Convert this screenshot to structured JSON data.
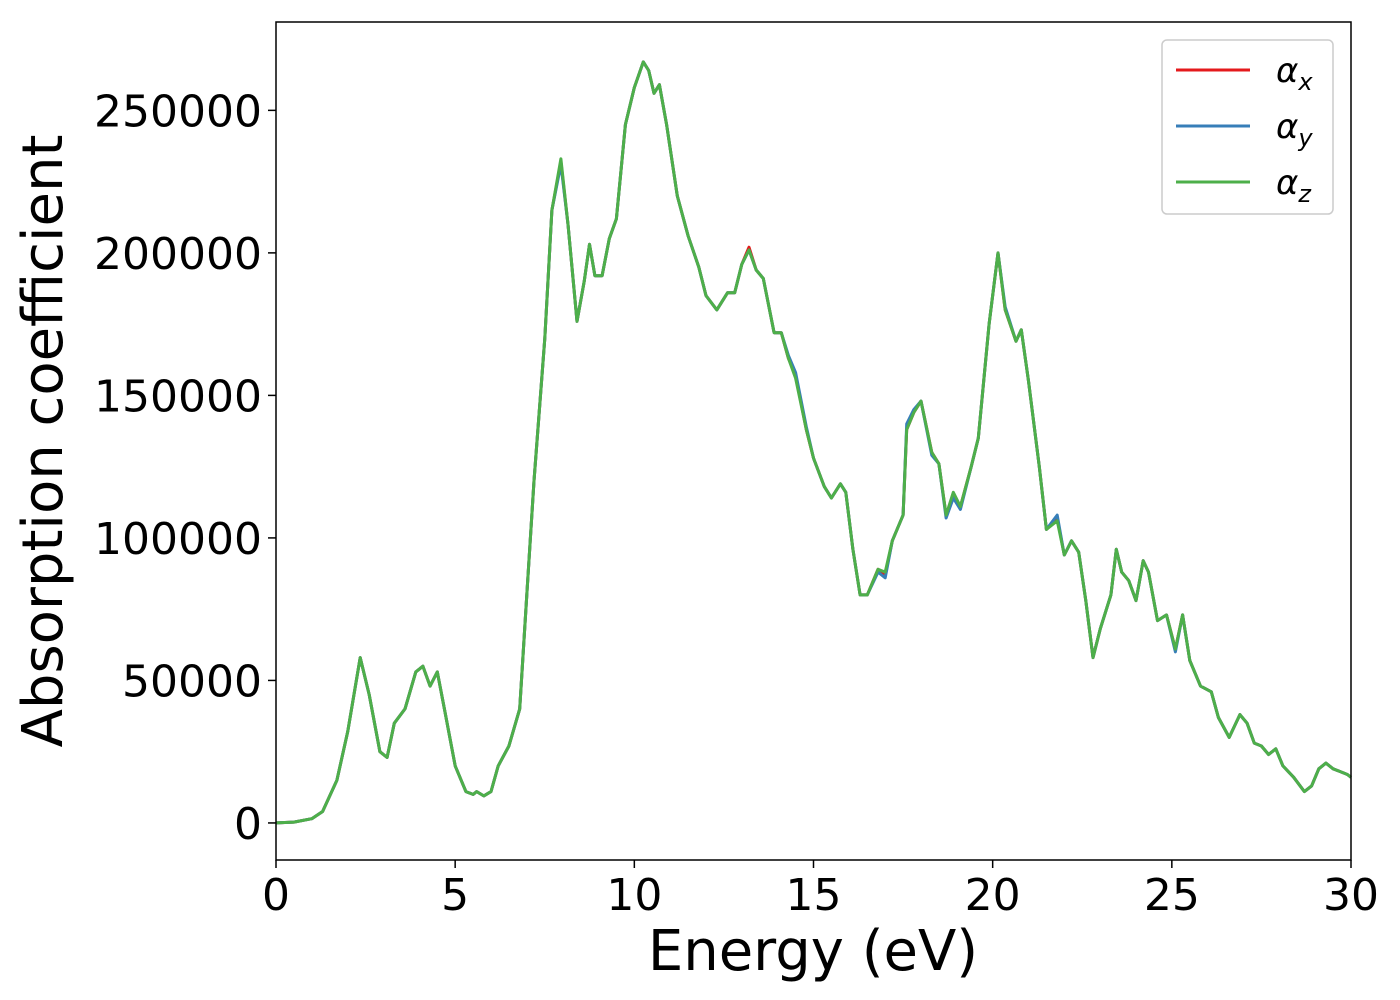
{
  "chart_data": {
    "type": "line",
    "xlabel": "Energy (eV)",
    "ylabel": "Absorption coefficient",
    "x": [
      0,
      0.5,
      1.0,
      1.3,
      1.7,
      2.0,
      2.35,
      2.6,
      2.9,
      3.1,
      3.3,
      3.6,
      3.9,
      4.1,
      4.3,
      4.5,
      4.7,
      5.0,
      5.3,
      5.5,
      5.6,
      5.8,
      6.0,
      6.2,
      6.5,
      6.8,
      7.0,
      7.2,
      7.5,
      7.7,
      7.95,
      8.15,
      8.4,
      8.6,
      8.75,
      8.9,
      9.1,
      9.3,
      9.5,
      9.75,
      10.0,
      10.25,
      10.4,
      10.55,
      10.7,
      10.9,
      11.2,
      11.5,
      11.8,
      12.0,
      12.3,
      12.6,
      12.8,
      13.0,
      13.2,
      13.4,
      13.6,
      13.9,
      14.1,
      14.3,
      14.5,
      14.8,
      15.0,
      15.3,
      15.5,
      15.75,
      15.9,
      16.1,
      16.3,
      16.5,
      16.8,
      17.0,
      17.2,
      17.5,
      17.6,
      17.8,
      18.0,
      18.3,
      18.5,
      18.7,
      18.9,
      19.1,
      19.4,
      19.6,
      19.9,
      20.15,
      20.35,
      20.65,
      20.8,
      21.0,
      21.3,
      21.5,
      21.8,
      22.0,
      22.2,
      22.4,
      22.6,
      22.8,
      23.0,
      23.3,
      23.45,
      23.6,
      23.8,
      24.0,
      24.2,
      24.35,
      24.6,
      24.85,
      25.1,
      25.3,
      25.5,
      25.8,
      26.1,
      26.3,
      26.6,
      26.9,
      27.1,
      27.3,
      27.5,
      27.7,
      27.9,
      28.1,
      28.4,
      28.7,
      28.9,
      29.1,
      29.3,
      29.5,
      29.7,
      29.9,
      30
    ],
    "series": [
      {
        "name": "αx",
        "color": "#e41a1c",
        "values": [
          0,
          300,
          1500,
          4000,
          15000,
          32000,
          58000,
          45000,
          25000,
          23000,
          35000,
          40000,
          53000,
          55000,
          48000,
          53000,
          40000,
          20000,
          11000,
          10000,
          11000,
          9500,
          11000,
          20000,
          27000,
          40000,
          80000,
          120000,
          170000,
          215000,
          232000,
          210000,
          176000,
          190000,
          203000,
          192000,
          192000,
          205000,
          212000,
          245000,
          258000,
          267000,
          264000,
          256000,
          259000,
          245000,
          220000,
          206000,
          195000,
          185000,
          180000,
          186000,
          186000,
          196000,
          202000,
          194000,
          191000,
          172000,
          172000,
          163000,
          157000,
          138000,
          128000,
          118000,
          114000,
          119000,
          116000,
          96000,
          80000,
          80000,
          89000,
          87000,
          99000,
          108000,
          138000,
          144000,
          148000,
          130000,
          126000,
          108000,
          115000,
          111000,
          125000,
          135000,
          175000,
          200000,
          180000,
          169000,
          173000,
          155000,
          125000,
          103000,
          107000,
          94000,
          99000,
          95000,
          78000,
          58000,
          68000,
          80000,
          96000,
          88000,
          85000,
          78000,
          92000,
          88000,
          71000,
          73000,
          61000,
          73000,
          57000,
          48000,
          46000,
          37000,
          30000,
          38000,
          35000,
          28000,
          27000,
          24000,
          26000,
          20000,
          16000,
          11000,
          13000,
          19000,
          21000,
          19000,
          18000,
          17000,
          16000
        ]
      },
      {
        "name": "αy",
        "color": "#377eb8",
        "values": [
          0,
          300,
          1500,
          4000,
          15000,
          32000,
          58000,
          45000,
          25000,
          23000,
          35000,
          40000,
          53000,
          55000,
          48000,
          53000,
          40000,
          20000,
          11000,
          10000,
          11000,
          9500,
          11000,
          20000,
          27000,
          40000,
          80000,
          120000,
          170000,
          215000,
          231000,
          210000,
          176000,
          190000,
          203000,
          192000,
          192000,
          205000,
          212000,
          245000,
          258000,
          267000,
          264000,
          256000,
          259000,
          245000,
          220000,
          206000,
          195000,
          185000,
          180000,
          186000,
          186000,
          196000,
          201000,
          194000,
          191000,
          172000,
          172000,
          164000,
          158000,
          139000,
          128000,
          118000,
          114000,
          119000,
          116000,
          96000,
          80000,
          80000,
          88000,
          86000,
          99000,
          108000,
          140000,
          145000,
          148000,
          129000,
          126000,
          107000,
          114000,
          110000,
          125000,
          135000,
          175000,
          200000,
          181000,
          169000,
          173000,
          155000,
          125000,
          103000,
          108000,
          94000,
          99000,
          95000,
          78000,
          58000,
          68000,
          80000,
          96000,
          88000,
          85000,
          78000,
          92000,
          88000,
          71000,
          73000,
          60000,
          73000,
          57000,
          48000,
          46000,
          37000,
          30000,
          38000,
          35000,
          28000,
          27000,
          24000,
          26000,
          20000,
          16000,
          11000,
          13000,
          19000,
          21000,
          19000,
          18000,
          17000,
          16000
        ]
      },
      {
        "name": "αz",
        "color": "#4daf4a",
        "values": [
          0,
          300,
          1500,
          4000,
          15000,
          32000,
          58000,
          45000,
          25000,
          23000,
          35000,
          40000,
          53000,
          55000,
          48000,
          53000,
          40000,
          20000,
          11000,
          10000,
          11000,
          9500,
          11000,
          20000,
          27000,
          40000,
          80000,
          120000,
          170000,
          215000,
          233000,
          210000,
          176000,
          190000,
          203000,
          192000,
          192000,
          205000,
          212000,
          245000,
          258000,
          267000,
          264000,
          256000,
          259000,
          245000,
          220000,
          206000,
          195000,
          185000,
          180000,
          186000,
          186000,
          196000,
          201000,
          194000,
          191000,
          172000,
          172000,
          163000,
          156000,
          138000,
          128000,
          118000,
          114000,
          119000,
          116000,
          96000,
          80000,
          80000,
          89000,
          88000,
          99000,
          108000,
          138000,
          144000,
          148000,
          130000,
          126000,
          108000,
          116000,
          111000,
          125000,
          135000,
          175000,
          200000,
          180000,
          169000,
          173000,
          155000,
          125000,
          103000,
          106000,
          94000,
          99000,
          95000,
          78000,
          58000,
          68000,
          80000,
          96000,
          88000,
          85000,
          78000,
          92000,
          88000,
          71000,
          73000,
          61000,
          73000,
          57000,
          48000,
          46000,
          37000,
          30000,
          38000,
          35000,
          28000,
          27000,
          24000,
          26000,
          20000,
          16000,
          11000,
          13000,
          19000,
          21000,
          19000,
          18000,
          17000,
          16000
        ]
      }
    ],
    "xlim": [
      0,
      30
    ],
    "xticks": [
      0,
      5,
      10,
      15,
      20,
      25,
      30
    ],
    "ylim": [
      -13000,
      281000
    ],
    "yticks": [
      0,
      50000,
      100000,
      150000,
      200000,
      250000
    ],
    "legend": "upper right"
  }
}
